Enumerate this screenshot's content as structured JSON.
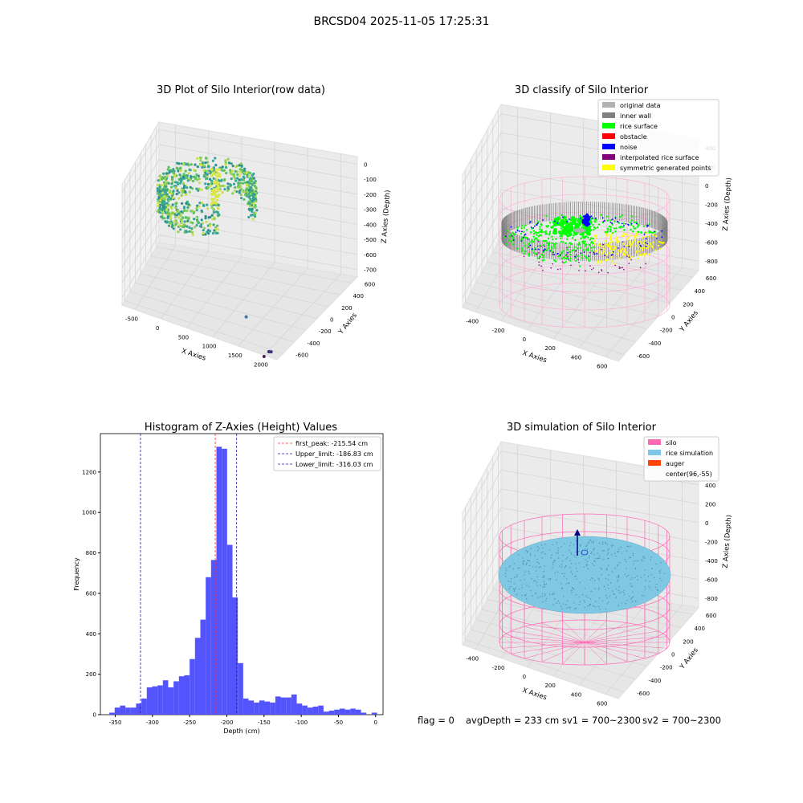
{
  "suptitle": "BRCSD04 2025-11-05 17:25:31",
  "colors": {
    "pane": "#f2f2f2",
    "grid": "#d6d6d6",
    "hist_bar": "#4b4bff",
    "peak_line": "#ff2a2a",
    "limit_line": "#1a1a99",
    "silo": "#ff69b4",
    "rice_sim": "#7ec8e3",
    "auger": "#ff4500"
  },
  "chart_data": [
    {
      "id": "raw",
      "type": "scatter3d",
      "title": "3D Plot of Silo Interior(row data)",
      "xlabel": "X Axies",
      "ylabel": "Y Axies",
      "zlabel": "Z Axies (Depth)",
      "x_ticks": [
        "-500",
        "0",
        "500",
        "1000",
        "1500",
        "2000"
      ],
      "y_ticks": [
        "-600",
        "-400",
        "-200",
        "0",
        "200",
        "400",
        "600"
      ],
      "z_ticks": [
        "0",
        "-100",
        "-200",
        "-300",
        "-400",
        "-500",
        "-600",
        "-700"
      ],
      "outliers": [
        {
          "x": 1300,
          "y": -150,
          "z": -650
        },
        {
          "x": 1900,
          "y": -500,
          "z": -700
        },
        {
          "x": 1950,
          "y": -520,
          "z": -690
        },
        {
          "x": 1850,
          "y": -560,
          "z": -720
        }
      ]
    },
    {
      "id": "classify",
      "type": "scatter3d",
      "title": "3D classify of Silo Interior",
      "xlabel": "X Axies",
      "ylabel": "Y Axies",
      "zlabel": "Z Axies (Depth)",
      "x_ticks": [
        "-400",
        "-200",
        "0",
        "200",
        "400",
        "600"
      ],
      "y_ticks": [
        "-600",
        "-400",
        "-200",
        "0",
        "200",
        "400",
        "600"
      ],
      "z_ticks": [
        "400",
        "200",
        "0",
        "-200",
        "-400",
        "-600",
        "-800"
      ],
      "legend_position": "top-right",
      "legend": [
        {
          "label": "original data",
          "color": "#b0b0b0"
        },
        {
          "label": "inner wall",
          "color": "#808080"
        },
        {
          "label": "rice surface",
          "color": "#00ff00"
        },
        {
          "label": "obstacle",
          "color": "#ff0000"
        },
        {
          "label": "noise",
          "color": "#0000ff"
        },
        {
          "label": "interpolated rice surface",
          "color": "#800080"
        },
        {
          "label": "symmetric generated points",
          "color": "#ffff00"
        }
      ]
    },
    {
      "id": "hist",
      "type": "bar",
      "title": "Histogram of Z-Axies (Height) Values",
      "xlabel": "Depth (cm)",
      "ylabel": "Frequency",
      "xlim": [
        -370,
        10
      ],
      "ylim": [
        0,
        1390
      ],
      "x_ticks": [
        -350,
        -300,
        -250,
        -200,
        -150,
        -100,
        -50,
        0
      ],
      "y_ticks": [
        0,
        200,
        400,
        600,
        800,
        1000,
        1200
      ],
      "bin_width": 7.2,
      "bin_start": -358,
      "values": [
        10,
        35,
        45,
        35,
        35,
        55,
        80,
        135,
        140,
        145,
        170,
        135,
        165,
        190,
        195,
        275,
        380,
        470,
        680,
        765,
        1325,
        1315,
        840,
        580,
        255,
        80,
        70,
        60,
        70,
        65,
        60,
        90,
        85,
        85,
        100,
        55,
        45,
        35,
        40,
        45,
        15,
        20,
        25,
        30,
        25,
        30,
        25,
        10,
        0,
        10
      ],
      "vlines": [
        {
          "x": -215.54,
          "label": "first_peak: -215.54 cm",
          "color": "#ff2a2a"
        },
        {
          "x": -186.83,
          "label": "Upper_limit: -186.83 cm",
          "color": "#1a1a99"
        },
        {
          "x": -316.03,
          "label": "Lower_limit: -316.03 cm",
          "color": "#1a1a99"
        }
      ],
      "legend_position": "top-right"
    },
    {
      "id": "sim",
      "type": "surface3d",
      "title": "3D simulation of Silo Interior",
      "xlabel": "X Axies",
      "ylabel": "Y Axies",
      "zlabel": "Z Axies (Depth)",
      "x_ticks": [
        "-400",
        "-200",
        "0",
        "200",
        "400",
        "600"
      ],
      "y_ticks": [
        "-600",
        "-400",
        "-200",
        "0",
        "200",
        "400",
        "600"
      ],
      "z_ticks": [
        "400",
        "200",
        "0",
        "-200",
        "-400",
        "-600",
        "-800"
      ],
      "legend_position": "top-right",
      "legend": [
        {
          "label": "silo",
          "color": "#ff69b4"
        },
        {
          "label": "rice simulation",
          "color": "#7ec8e3"
        },
        {
          "label": "auger",
          "color": "#ff4500"
        },
        {
          "label": "center(96,-55)",
          "color": ""
        }
      ]
    }
  ],
  "status": {
    "flag": "flag = 0",
    "avg_depth": "avgDepth = 233 cm",
    "sv1": "sv1 = 700~2300",
    "sv2": "sv2 = 700~2300"
  }
}
